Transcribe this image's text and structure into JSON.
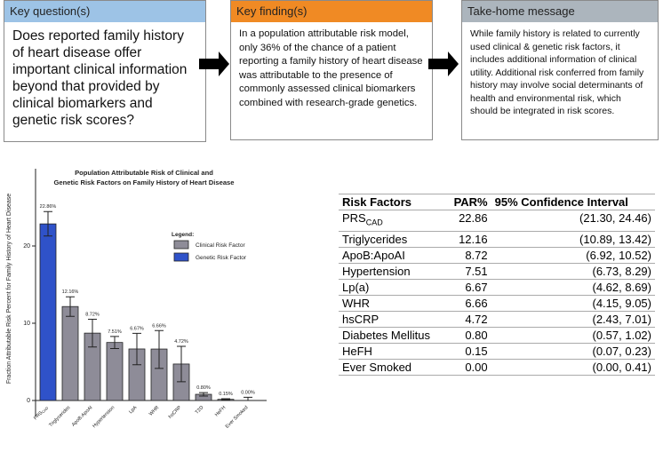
{
  "boxes": [
    {
      "header": "Key question(s)",
      "body": "Does reported family history of heart disease offer important clinical information beyond that provided by clinical biomarkers and genetic risk scores?"
    },
    {
      "header": "Key finding(s)",
      "body": "In a population attributable risk model, only 36% of the chance of a patient reporting a family history of heart disease was attributable to the presence of commonly assessed clinical biomarkers combined with research-grade genetics."
    },
    {
      "header": "Take-home message",
      "body": "While family history is related to currently used clinical & genetic risk factors, it includes additional information of clinical utility. Additional risk conferred from family history may involve social determinants of health and environmental risk, which should be integrated in risk scores."
    }
  ],
  "chart_data": {
    "type": "bar",
    "title": "Population Attributable Risk of Clinical and Genetic Risk Factors on Family History of Heart Disease",
    "y_label": "Fraction Attributable Risk Percent for Family History of Heart Disease",
    "categories": [
      "PRS",
      "Triglycerides",
      "ApoB:ApoAI",
      "Hypertension",
      "LpA",
      "WHR",
      "hsCRP",
      "T2D",
      "HeFH",
      "Ever Smoked"
    ],
    "first_category_subscript": "CAD",
    "legend_title": "Legend:",
    "series": [
      {
        "name": "Clinical Risk Factor",
        "color": "#8e8c98",
        "values": [
          null,
          12.16,
          8.72,
          7.51,
          6.67,
          6.66,
          4.72,
          0.8,
          0.15,
          0.0
        ],
        "value_labels": [
          null,
          "12.16%",
          "8.72%",
          "7.51%",
          "6.67%",
          "6.66%",
          "4.72%",
          "0.80%",
          "0.15%",
          "0.00%"
        ],
        "ci_low": [
          null,
          10.89,
          6.92,
          6.73,
          4.62,
          4.15,
          2.43,
          0.57,
          0.07,
          0.0
        ],
        "ci_high": [
          null,
          13.42,
          10.52,
          8.29,
          8.69,
          9.05,
          7.01,
          1.02,
          0.23,
          0.41
        ]
      },
      {
        "name": "Genetic Risk Factor",
        "color": "#2f52c9",
        "values": [
          22.86,
          null,
          null,
          null,
          null,
          null,
          null,
          null,
          null,
          null
        ],
        "value_labels": [
          "22.86%",
          null,
          null,
          null,
          null,
          null,
          null,
          null,
          null,
          null
        ],
        "ci_low": [
          21.3,
          null,
          null,
          null,
          null,
          null,
          null,
          null,
          null,
          null
        ],
        "ci_high": [
          24.46,
          null,
          null,
          null,
          null,
          null,
          null,
          null,
          null,
          null
        ]
      }
    ],
    "ylim": [
      0,
      30
    ],
    "yticks": [
      0,
      10,
      20
    ]
  },
  "table": {
    "header": [
      "Risk Factors",
      "PAR%",
      "95% Confidence Interval"
    ],
    "rows": [
      [
        {
          "text": "PRS",
          "sub": "CAD"
        },
        "22.86",
        "(21.30, 24.46)"
      ],
      [
        {
          "text": "Triglycerides"
        },
        "12.16",
        "(10.89, 13.42)"
      ],
      [
        {
          "text": "ApoB:ApoAI"
        },
        "8.72",
        "(6.92, 10.52)"
      ],
      [
        {
          "text": "Hypertension"
        },
        "7.51",
        "(6.73, 8.29)"
      ],
      [
        {
          "text": "Lp(a)"
        },
        "6.67",
        "(4.62, 8.69)"
      ],
      [
        {
          "text": "WHR"
        },
        "6.66",
        "(4.15, 9.05)"
      ],
      [
        {
          "text": "hsCRP"
        },
        "4.72",
        "(2.43, 7.01)"
      ],
      [
        {
          "text": "Diabetes Mellitus"
        },
        "0.80",
        "(0.57, 1.02)"
      ],
      [
        {
          "text": "HeFH"
        },
        "0.15",
        "(0.07, 0.23)"
      ],
      [
        {
          "text": "Ever Smoked"
        },
        "0.00",
        "(0.00, 0.41)"
      ]
    ]
  }
}
